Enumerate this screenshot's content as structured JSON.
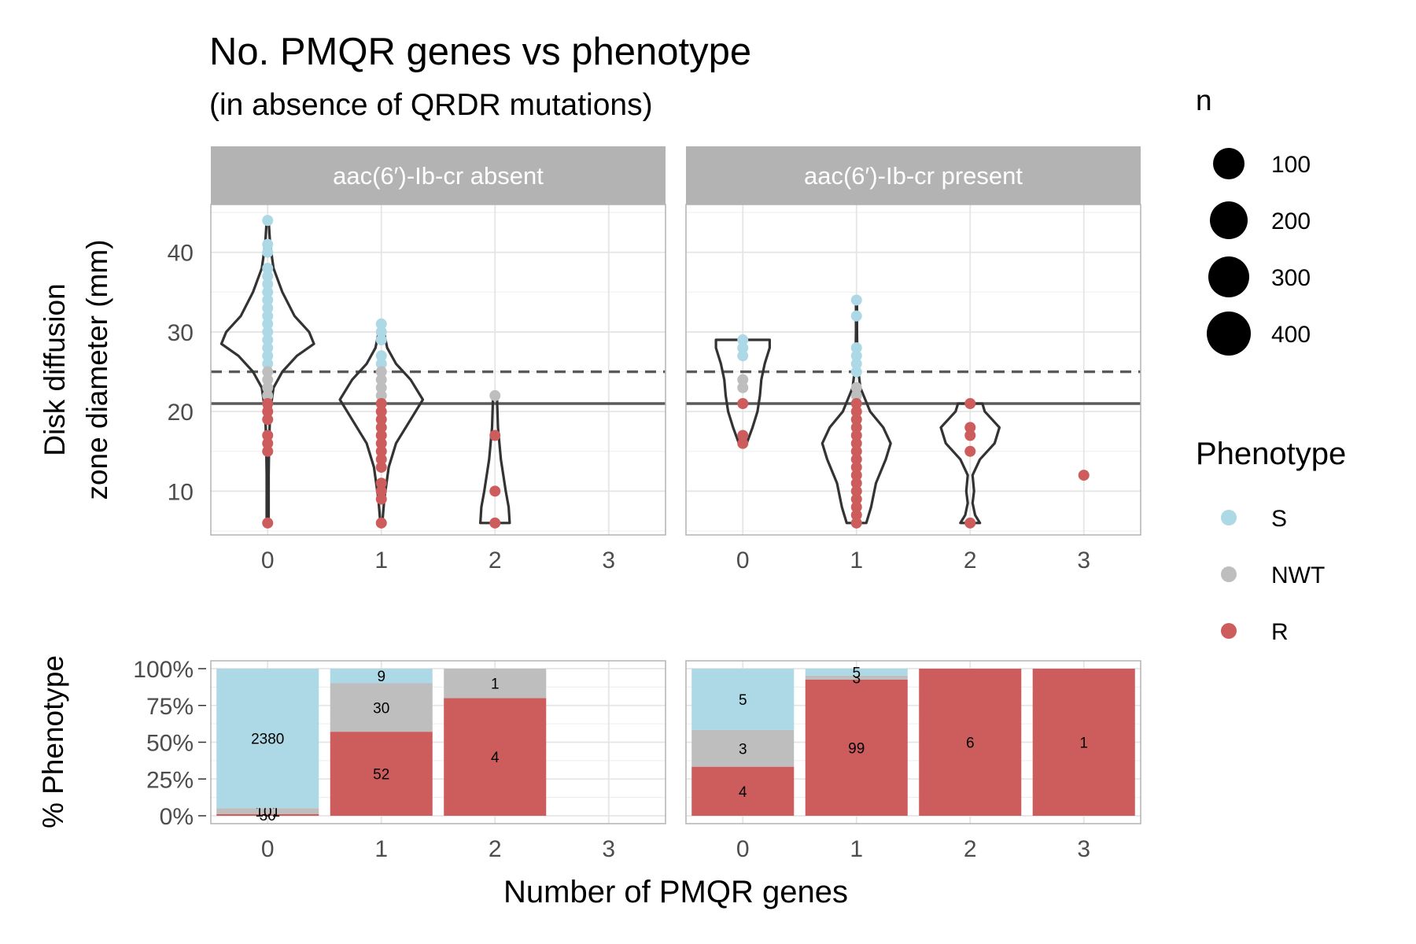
{
  "title": "No. PMQR genes vs phenotype",
  "subtitle": "(in absence of QRDR mutations)",
  "colors": {
    "S": "#ADD8E6",
    "NWT": "#BEBEBE",
    "R": "#CD5C5C",
    "strip": "#B3B3B3",
    "grid": "#E5E5E5"
  },
  "chart_data": [
    {
      "type": "scatter",
      "description_role": "violin + jittered points",
      "ylabel": "Disk diffusion zone diameter (mm)",
      "ylabel_lines": [
        "Disk diffusion",
        "zone diameter (mm)"
      ],
      "categories": [
        "0",
        "1",
        "2",
        "3"
      ],
      "yticks": [
        10,
        20,
        30,
        40
      ],
      "ylim": [
        4.5,
        46
      ],
      "reference_lines": [
        {
          "y": 25,
          "style": "dashed"
        },
        {
          "y": 21,
          "style": "solid"
        }
      ],
      "panels": [
        {
          "strip": "aac(6′)-Ib-cr absent",
          "violins": [
            {
              "x": "0",
              "ymin": 6,
              "ymax": 44,
              "dens": [
                [
                  6,
                  0.02
                ],
                [
                  12,
                  0.02
                ],
                [
                  16,
                  0.03
                ],
                [
                  20,
                  0.05
                ],
                [
                  23,
                  0.12
                ],
                [
                  25,
                  0.3
                ],
                [
                  27,
                  0.6
                ],
                [
                  28.5,
                  0.95
                ],
                [
                  30,
                  0.85
                ],
                [
                  32,
                  0.55
                ],
                [
                  35,
                  0.3
                ],
                [
                  38,
                  0.12
                ],
                [
                  41,
                  0.05
                ],
                [
                  44,
                  0.02
                ]
              ]
            },
            {
              "x": "1",
              "ymin": 6,
              "ymax": 31,
              "dens": [
                [
                  6,
                  0.02
                ],
                [
                  9,
                  0.06
                ],
                [
                  13,
                  0.15
                ],
                [
                  16,
                  0.3
                ],
                [
                  19,
                  0.6
                ],
                [
                  21.5,
                  0.85
                ],
                [
                  24,
                  0.6
                ],
                [
                  26,
                  0.3
                ],
                [
                  28,
                  0.12
                ],
                [
                  31,
                  0.02
                ]
              ]
            },
            {
              "x": "2",
              "ymin": 6,
              "ymax": 22,
              "dens": [
                [
                  6,
                  0.3
                ],
                [
                  8,
                  0.28
                ],
                [
                  10,
                  0.22
                ],
                [
                  14,
                  0.12
                ],
                [
                  18,
                  0.06
                ],
                [
                  22,
                  0.04
                ]
              ]
            }
          ],
          "points": [
            {
              "x": "0",
              "y": 44,
              "ph": "S"
            },
            {
              "x": "0",
              "y": 41,
              "ph": "S"
            },
            {
              "x": "0",
              "y": 40,
              "ph": "S"
            },
            {
              "x": "0",
              "y": 38,
              "ph": "S"
            },
            {
              "x": "0",
              "y": 37,
              "ph": "S"
            },
            {
              "x": "0",
              "y": 36,
              "ph": "S"
            },
            {
              "x": "0",
              "y": 35,
              "ph": "S"
            },
            {
              "x": "0",
              "y": 34,
              "ph": "S"
            },
            {
              "x": "0",
              "y": 33,
              "ph": "S"
            },
            {
              "x": "0",
              "y": 32,
              "ph": "S"
            },
            {
              "x": "0",
              "y": 31,
              "ph": "S"
            },
            {
              "x": "0",
              "y": 30,
              "ph": "S"
            },
            {
              "x": "0",
              "y": 29,
              "ph": "S"
            },
            {
              "x": "0",
              "y": 28,
              "ph": "S"
            },
            {
              "x": "0",
              "y": 27,
              "ph": "S"
            },
            {
              "x": "0",
              "y": 26,
              "ph": "S"
            },
            {
              "x": "0",
              "y": 25,
              "ph": "NWT"
            },
            {
              "x": "0",
              "y": 24,
              "ph": "NWT"
            },
            {
              "x": "0",
              "y": 23,
              "ph": "NWT"
            },
            {
              "x": "0",
              "y": 22,
              "ph": "NWT"
            },
            {
              "x": "0",
              "y": 21,
              "ph": "R"
            },
            {
              "x": "0",
              "y": 20,
              "ph": "R"
            },
            {
              "x": "0",
              "y": 19,
              "ph": "R"
            },
            {
              "x": "0",
              "y": 17,
              "ph": "R"
            },
            {
              "x": "0",
              "y": 16,
              "ph": "R"
            },
            {
              "x": "0",
              "y": 15,
              "ph": "R"
            },
            {
              "x": "0",
              "y": 6,
              "ph": "R"
            },
            {
              "x": "1",
              "y": 31,
              "ph": "S"
            },
            {
              "x": "1",
              "y": 30,
              "ph": "S"
            },
            {
              "x": "1",
              "y": 29,
              "ph": "S"
            },
            {
              "x": "1",
              "y": 27,
              "ph": "S"
            },
            {
              "x": "1",
              "y": 26,
              "ph": "S"
            },
            {
              "x": "1",
              "y": 25,
              "ph": "NWT"
            },
            {
              "x": "1",
              "y": 24,
              "ph": "NWT"
            },
            {
              "x": "1",
              "y": 23,
              "ph": "NWT"
            },
            {
              "x": "1",
              "y": 22,
              "ph": "NWT"
            },
            {
              "x": "1",
              "y": 21,
              "ph": "R"
            },
            {
              "x": "1",
              "y": 20,
              "ph": "R"
            },
            {
              "x": "1",
              "y": 19,
              "ph": "R"
            },
            {
              "x": "1",
              "y": 18,
              "ph": "R"
            },
            {
              "x": "1",
              "y": 17,
              "ph": "R"
            },
            {
              "x": "1",
              "y": 16,
              "ph": "R"
            },
            {
              "x": "1",
              "y": 15,
              "ph": "R"
            },
            {
              "x": "1",
              "y": 14,
              "ph": "R"
            },
            {
              "x": "1",
              "y": 13,
              "ph": "R"
            },
            {
              "x": "1",
              "y": 11,
              "ph": "R"
            },
            {
              "x": "1",
              "y": 10,
              "ph": "R"
            },
            {
              "x": "1",
              "y": 9,
              "ph": "R"
            },
            {
              "x": "1",
              "y": 6,
              "ph": "R"
            },
            {
              "x": "2",
              "y": 22,
              "ph": "NWT"
            },
            {
              "x": "2",
              "y": 17,
              "ph": "R"
            },
            {
              "x": "2",
              "y": 10,
              "ph": "R"
            },
            {
              "x": "2",
              "y": 6,
              "ph": "R"
            }
          ]
        },
        {
          "strip": "aac(6′)-Ib-cr present",
          "violins": [
            {
              "x": "0",
              "ymin": 16,
              "ymax": 29,
              "dens": [
                [
                  16,
                  0.08
                ],
                [
                  18,
                  0.2
                ],
                [
                  20,
                  0.3
                ],
                [
                  22,
                  0.35
                ],
                [
                  24,
                  0.38
                ],
                [
                  26,
                  0.45
                ],
                [
                  28,
                  0.55
                ],
                [
                  29,
                  0.55
                ]
              ]
            },
            {
              "x": "1",
              "ymin": 6,
              "ymax": 34,
              "dens": [
                [
                  6,
                  0.2
                ],
                [
                  8,
                  0.3
                ],
                [
                  11,
                  0.4
                ],
                [
                  14,
                  0.6
                ],
                [
                  16,
                  0.7
                ],
                [
                  18,
                  0.55
                ],
                [
                  20,
                  0.28
                ],
                [
                  23,
                  0.08
                ],
                [
                  26,
                  0.02
                ],
                [
                  30,
                  0.01
                ],
                [
                  34,
                  0.01
                ]
              ]
            },
            {
              "x": "2",
              "ymin": 6,
              "ymax": 21,
              "dens": [
                [
                  6,
                  0.2
                ],
                [
                  7,
                  0.1
                ],
                [
                  8.5,
                  0.05
                ],
                [
                  10,
                  0.08
                ],
                [
                  12,
                  0.05
                ],
                [
                  14,
                  0.2
                ],
                [
                  16,
                  0.5
                ],
                [
                  18,
                  0.6
                ],
                [
                  20,
                  0.3
                ],
                [
                  21,
                  0.25
                ]
              ]
            }
          ],
          "points": [
            {
              "x": "0",
              "y": 29,
              "ph": "S"
            },
            {
              "x": "0",
              "y": 28,
              "ph": "S"
            },
            {
              "x": "0",
              "y": 27,
              "ph": "S"
            },
            {
              "x": "0",
              "y": 24,
              "ph": "NWT"
            },
            {
              "x": "0",
              "y": 23,
              "ph": "NWT"
            },
            {
              "x": "0",
              "y": 21,
              "ph": "R"
            },
            {
              "x": "0",
              "y": 17,
              "ph": "R"
            },
            {
              "x": "0",
              "y": 16,
              "ph": "R"
            },
            {
              "x": "1",
              "y": 34,
              "ph": "S"
            },
            {
              "x": "1",
              "y": 32,
              "ph": "S"
            },
            {
              "x": "1",
              "y": 28,
              "ph": "S"
            },
            {
              "x": "1",
              "y": 27,
              "ph": "S"
            },
            {
              "x": "1",
              "y": 26,
              "ph": "S"
            },
            {
              "x": "1",
              "y": 25,
              "ph": "S"
            },
            {
              "x": "1",
              "y": 23,
              "ph": "NWT"
            },
            {
              "x": "1",
              "y": 22,
              "ph": "NWT"
            },
            {
              "x": "1",
              "y": 21,
              "ph": "R"
            },
            {
              "x": "1",
              "y": 20,
              "ph": "R"
            },
            {
              "x": "1",
              "y": 19,
              "ph": "R"
            },
            {
              "x": "1",
              "y": 18,
              "ph": "R"
            },
            {
              "x": "1",
              "y": 17,
              "ph": "R"
            },
            {
              "x": "1",
              "y": 16,
              "ph": "R"
            },
            {
              "x": "1",
              "y": 15,
              "ph": "R"
            },
            {
              "x": "1",
              "y": 14,
              "ph": "R"
            },
            {
              "x": "1",
              "y": 13,
              "ph": "R"
            },
            {
              "x": "1",
              "y": 12,
              "ph": "R"
            },
            {
              "x": "1",
              "y": 11,
              "ph": "R"
            },
            {
              "x": "1",
              "y": 10,
              "ph": "R"
            },
            {
              "x": "1",
              "y": 9,
              "ph": "R"
            },
            {
              "x": "1",
              "y": 8,
              "ph": "R"
            },
            {
              "x": "1",
              "y": 7,
              "ph": "R"
            },
            {
              "x": "1",
              "y": 6,
              "ph": "R"
            },
            {
              "x": "2",
              "y": 21,
              "ph": "R"
            },
            {
              "x": "2",
              "y": 18,
              "ph": "R"
            },
            {
              "x": "2",
              "y": 17,
              "ph": "R"
            },
            {
              "x": "2",
              "y": 15,
              "ph": "R"
            },
            {
              "x": "2",
              "y": 6,
              "ph": "R"
            },
            {
              "x": "3",
              "y": 12,
              "ph": "R"
            }
          ]
        }
      ]
    },
    {
      "type": "bar",
      "stacked": true,
      "ylabel": "% Phenotype",
      "xlabel": "Number of PMQR genes",
      "categories": [
        "0",
        "1",
        "2",
        "3"
      ],
      "ytick_labels": [
        "0%",
        "25%",
        "50%",
        "75%",
        "100%"
      ],
      "ylim": [
        0,
        1
      ],
      "stack_order": [
        "R",
        "NWT",
        "S"
      ],
      "panels": [
        {
          "strip": "aac(6′)-Ib-cr absent",
          "bars": [
            {
              "x": "0",
              "segments": [
                {
                  "ph": "R",
                  "count": 30,
                  "label": "30"
                },
                {
                  "ph": "NWT",
                  "count": 101,
                  "label": "101"
                },
                {
                  "ph": "S",
                  "count": 2380,
                  "label": "2380"
                }
              ]
            },
            {
              "x": "1",
              "segments": [
                {
                  "ph": "R",
                  "count": 52,
                  "label": "52"
                },
                {
                  "ph": "NWT",
                  "count": 30,
                  "label": "30"
                },
                {
                  "ph": "S",
                  "count": 9,
                  "label": "9"
                }
              ]
            },
            {
              "x": "2",
              "segments": [
                {
                  "ph": "R",
                  "count": 4,
                  "label": "4"
                },
                {
                  "ph": "NWT",
                  "count": 1,
                  "label": "1"
                }
              ]
            }
          ]
        },
        {
          "strip": "aac(6′)-Ib-cr present",
          "bars": [
            {
              "x": "0",
              "segments": [
                {
                  "ph": "R",
                  "count": 4,
                  "label": "4"
                },
                {
                  "ph": "NWT",
                  "count": 3,
                  "label": "3"
                },
                {
                  "ph": "S",
                  "count": 5,
                  "label": "5"
                }
              ]
            },
            {
              "x": "1",
              "segments": [
                {
                  "ph": "R",
                  "count": 99,
                  "label": "99"
                },
                {
                  "ph": "NWT",
                  "count": 3,
                  "label": "3"
                },
                {
                  "ph": "S",
                  "count": 5,
                  "label": "5"
                }
              ]
            },
            {
              "x": "2",
              "segments": [
                {
                  "ph": "R",
                  "count": 6,
                  "label": "6"
                }
              ]
            },
            {
              "x": "3",
              "segments": [
                {
                  "ph": "R",
                  "count": 1,
                  "label": "1"
                }
              ]
            }
          ]
        }
      ]
    }
  ],
  "legend": {
    "size": {
      "title": "n",
      "items": [
        "100",
        "200",
        "300",
        "400"
      ]
    },
    "phenotype": {
      "title": "Phenotype",
      "items": [
        {
          "label": "S",
          "key": "S"
        },
        {
          "label": "NWT",
          "key": "NWT"
        },
        {
          "label": "R",
          "key": "R"
        }
      ]
    }
  }
}
